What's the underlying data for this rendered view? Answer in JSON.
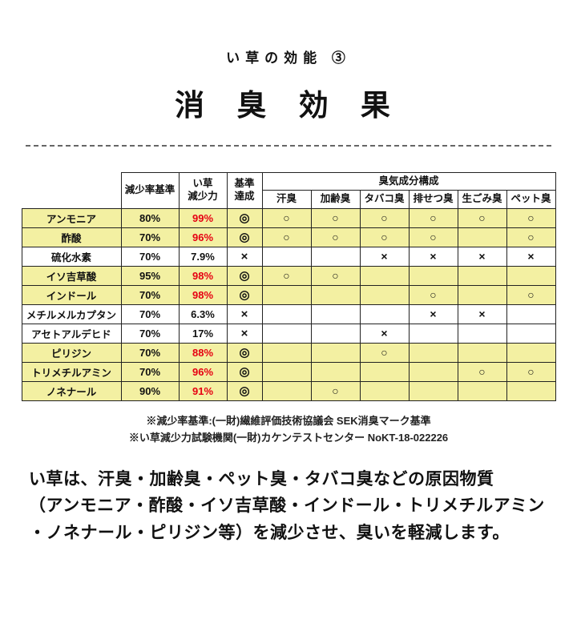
{
  "page": {
    "subtitle": "い草の効能 ③",
    "title": "消 臭 効 果"
  },
  "table": {
    "headers": {
      "reduction_standard": "減少率基準",
      "igusa_power": "い草\n減少力",
      "standard_achieve": "基準\n達成",
      "odor_group": "臭気成分構成",
      "odor_columns": [
        "汗臭",
        "加齢臭",
        "タバコ臭",
        "排せつ臭",
        "生ごみ臭",
        "ペット臭"
      ]
    },
    "rows": [
      {
        "name": "アンモニア",
        "standard": "80%",
        "power": "99%",
        "achieved": "◎",
        "highlight": true,
        "odors": [
          "○",
          "○",
          "○",
          "○",
          "○",
          "○"
        ]
      },
      {
        "name": "酢酸",
        "standard": "70%",
        "power": "96%",
        "achieved": "◎",
        "highlight": true,
        "odors": [
          "○",
          "○",
          "○",
          "○",
          "",
          "○"
        ]
      },
      {
        "name": "硫化水素",
        "standard": "70%",
        "power": "7.9%",
        "achieved": "×",
        "highlight": false,
        "odors": [
          "",
          "",
          "×",
          "×",
          "×",
          "×"
        ]
      },
      {
        "name": "イソ吉草酸",
        "standard": "95%",
        "power": "98%",
        "achieved": "◎",
        "highlight": true,
        "odors": [
          "○",
          "○",
          "",
          "",
          "",
          ""
        ]
      },
      {
        "name": "インドール",
        "standard": "70%",
        "power": "98%",
        "achieved": "◎",
        "highlight": true,
        "odors": [
          "",
          "",
          "",
          "○",
          "",
          "○"
        ]
      },
      {
        "name": "メチルメルカプタン",
        "standard": "70%",
        "power": "6.3%",
        "achieved": "×",
        "highlight": false,
        "odors": [
          "",
          "",
          "",
          "×",
          "×",
          ""
        ]
      },
      {
        "name": "アセトアルデヒド",
        "standard": "70%",
        "power": "17%",
        "achieved": "×",
        "highlight": false,
        "odors": [
          "",
          "",
          "×",
          "",
          "",
          ""
        ]
      },
      {
        "name": "ピリジン",
        "standard": "70%",
        "power": "88%",
        "achieved": "◎",
        "highlight": true,
        "odors": [
          "",
          "",
          "○",
          "",
          "",
          ""
        ]
      },
      {
        "name": "トリメチルアミン",
        "standard": "70%",
        "power": "96%",
        "achieved": "◎",
        "highlight": true,
        "odors": [
          "",
          "",
          "",
          "",
          "○",
          "○"
        ]
      },
      {
        "name": "ノネナール",
        "standard": "90%",
        "power": "91%",
        "achieved": "◎",
        "highlight": true,
        "odors": [
          "",
          "○",
          "",
          "",
          "",
          ""
        ]
      }
    ]
  },
  "notes": [
    "※減少率基準:(一財)繊維評価技術協議会  SEK消臭マーク基準",
    "※い草減少力試験機関(一財)カケンテストセンター  NoKT-18-022226"
  ],
  "description": {
    "lines": [
      "い草は、汗臭・加齢臭・ペット臭・タバコ臭などの原因物質",
      "（アンモニア・酢酸・イソ吉草酸・インドール・トリメチルアミン",
      "・ノネナール・ピリジン等）を減少させ、臭いを軽減します。"
    ]
  },
  "colors": {
    "highlight": "#f3f0a2",
    "power_red": "#e60012"
  }
}
